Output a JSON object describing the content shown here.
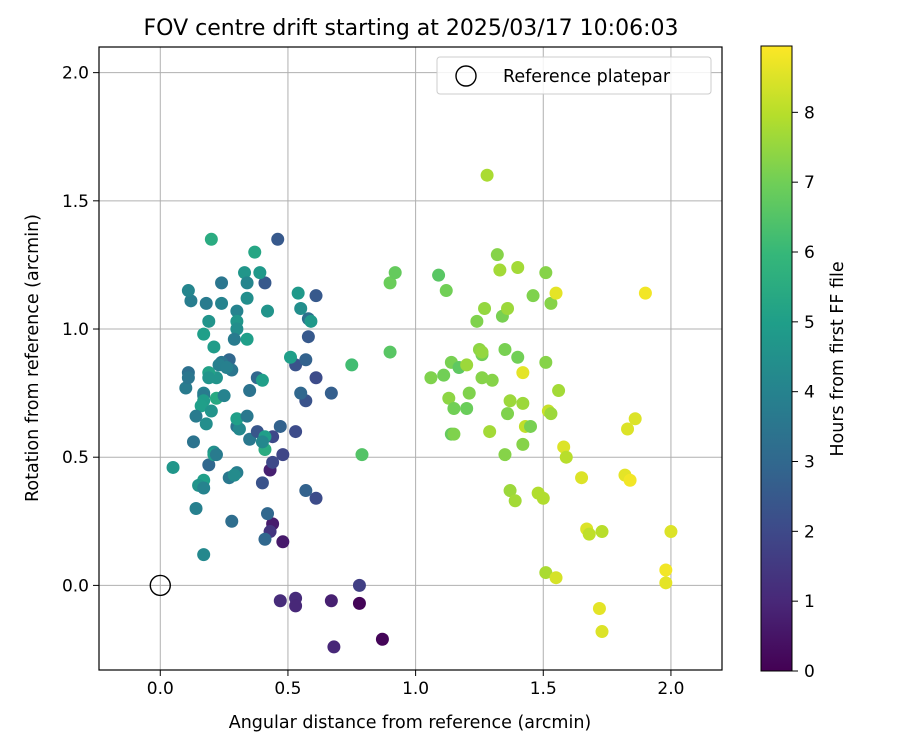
{
  "chart_data": {
    "type": "scatter",
    "title": "FOV centre drift starting at 2025/03/17 10:06:03",
    "xlabel": "Angular distance from reference (arcmin)",
    "ylabel": "Rotation from reference (arcmin)",
    "xlim": [
      -0.24,
      2.2
    ],
    "ylim": [
      -0.33,
      2.1
    ],
    "xticks": [
      0.0,
      0.5,
      1.0,
      1.5,
      2.0
    ],
    "xtick_labels": [
      "0.0",
      "0.5",
      "1.0",
      "1.5",
      "2.0"
    ],
    "yticks": [
      0.0,
      0.5,
      1.0,
      1.5,
      2.0
    ],
    "ytick_labels": [
      "0.0",
      "0.5",
      "1.0",
      "1.5",
      "2.0"
    ],
    "grid": true,
    "legend": {
      "placement": "upper right",
      "entries": [
        {
          "label": "Reference platepar",
          "marker": "open-circle",
          "color": "#000000"
        }
      ]
    },
    "reference_point": {
      "x": 0.0,
      "y": 0.0
    },
    "colorbar": {
      "label": "Hours from first FF file",
      "colormap": "viridis",
      "range": [
        0,
        8.95
      ],
      "ticks": [
        0,
        1,
        2,
        3,
        4,
        5,
        6,
        7,
        8
      ],
      "tick_labels": [
        "0",
        "1",
        "2",
        "3",
        "4",
        "5",
        "6",
        "7",
        "8"
      ]
    },
    "points": [
      [
        0.87,
        -0.21,
        0.1
      ],
      [
        0.78,
        0.0,
        1.7
      ],
      [
        0.78,
        -0.07,
        0.1
      ],
      [
        0.68,
        -0.24,
        1.0
      ],
      [
        0.67,
        -0.06,
        0.8
      ],
      [
        0.53,
        -0.05,
        1.1
      ],
      [
        0.53,
        -0.08,
        1.0
      ],
      [
        0.47,
        -0.06,
        1.1
      ],
      [
        0.48,
        0.17,
        0.6
      ],
      [
        0.44,
        0.24,
        0.7
      ],
      [
        0.43,
        0.21,
        1.4
      ],
      [
        0.43,
        0.45,
        0.8
      ],
      [
        0.48,
        0.51,
        1.9
      ],
      [
        0.44,
        0.48,
        2.0
      ],
      [
        0.41,
        0.18,
        3.0
      ],
      [
        0.42,
        0.28,
        3.0
      ],
      [
        0.4,
        0.4,
        2.3
      ],
      [
        0.44,
        0.58,
        2.0
      ],
      [
        0.47,
        0.62,
        2.8
      ],
      [
        0.53,
        0.6,
        2.1
      ],
      [
        0.57,
        0.37,
        2.8
      ],
      [
        0.61,
        0.34,
        2.1
      ],
      [
        0.67,
        0.75,
        2.7
      ],
      [
        0.61,
        0.81,
        2.1
      ],
      [
        0.53,
        0.86,
        2.3
      ],
      [
        0.57,
        0.72,
        2.3
      ],
      [
        0.57,
        0.88,
        2.8
      ],
      [
        0.55,
        0.75,
        3.0
      ],
      [
        0.58,
        0.97,
        2.5
      ],
      [
        0.58,
        1.04,
        3.3
      ],
      [
        0.61,
        1.13,
        2.5
      ],
      [
        0.54,
        1.14,
        4.8
      ],
      [
        0.55,
        1.08,
        4.4
      ],
      [
        0.59,
        1.03,
        4.8
      ],
      [
        0.51,
        0.89,
        5.0
      ],
      [
        0.46,
        1.35,
        2.5
      ],
      [
        0.41,
        1.18,
        2.5
      ],
      [
        0.39,
        1.22,
        4.8
      ],
      [
        0.37,
        1.3,
        5.3
      ],
      [
        0.42,
        1.07,
        4.6
      ],
      [
        0.33,
        1.22,
        4.7
      ],
      [
        0.34,
        1.18,
        4.1
      ],
      [
        0.34,
        1.12,
        4.4
      ],
      [
        0.3,
        1.07,
        4.0
      ],
      [
        0.3,
        1.03,
        4.7
      ],
      [
        0.3,
        1.0,
        4.4
      ],
      [
        0.29,
        0.96,
        3.7
      ],
      [
        0.34,
        0.96,
        5.0
      ],
      [
        0.27,
        0.88,
        3.0
      ],
      [
        0.24,
        0.87,
        3.5
      ],
      [
        0.23,
        0.86,
        3.9
      ],
      [
        0.28,
        0.84,
        3.5
      ],
      [
        0.26,
        0.85,
        3.9
      ],
      [
        0.22,
        0.81,
        4.6
      ],
      [
        0.19,
        0.83,
        5.1
      ],
      [
        0.19,
        0.81,
        4.6
      ],
      [
        0.21,
        0.93,
        4.9
      ],
      [
        0.17,
        0.98,
        5.0
      ],
      [
        0.19,
        1.03,
        4.6
      ],
      [
        0.18,
        1.1,
        3.7
      ],
      [
        0.24,
        1.1,
        4.0
      ],
      [
        0.24,
        1.18,
        3.5
      ],
      [
        0.12,
        1.11,
        3.8
      ],
      [
        0.11,
        1.15,
        4.1
      ],
      [
        0.2,
        1.35,
        5.5
      ],
      [
        0.11,
        0.83,
        3.3
      ],
      [
        0.1,
        0.77,
        3.7
      ],
      [
        0.11,
        0.81,
        3.5
      ],
      [
        0.17,
        0.75,
        4.0
      ],
      [
        0.17,
        0.74,
        3.7
      ],
      [
        0.17,
        0.72,
        4.9
      ],
      [
        0.16,
        0.7,
        5.0
      ],
      [
        0.22,
        0.73,
        5.4
      ],
      [
        0.25,
        0.74,
        4.0
      ],
      [
        0.2,
        0.68,
        4.6
      ],
      [
        0.14,
        0.66,
        3.7
      ],
      [
        0.18,
        0.63,
        4.4
      ],
      [
        0.13,
        0.56,
        3.4
      ],
      [
        0.19,
        0.47,
        3.0
      ],
      [
        0.21,
        0.52,
        4.4
      ],
      [
        0.21,
        0.51,
        5.0
      ],
      [
        0.22,
        0.51,
        3.7
      ],
      [
        0.17,
        0.41,
        5.0
      ],
      [
        0.15,
        0.39,
        4.6
      ],
      [
        0.17,
        0.38,
        4.0
      ],
      [
        0.05,
        0.46,
        4.7
      ],
      [
        0.14,
        0.3,
        3.9
      ],
      [
        0.17,
        0.12,
        4.2
      ],
      [
        0.28,
        0.25,
        3.2
      ],
      [
        0.27,
        0.42,
        3.6
      ],
      [
        0.3,
        0.44,
        3.8
      ],
      [
        0.29,
        0.43,
        4.3
      ],
      [
        0.3,
        0.62,
        3.4
      ],
      [
        0.31,
        0.61,
        4.2
      ],
      [
        0.3,
        0.65,
        5.0
      ],
      [
        0.34,
        0.66,
        3.6
      ],
      [
        0.35,
        0.76,
        3.4
      ],
      [
        0.38,
        0.81,
        3.0
      ],
      [
        0.4,
        0.8,
        5.0
      ],
      [
        0.35,
        0.57,
        3.6
      ],
      [
        0.38,
        0.6,
        2.4
      ],
      [
        0.41,
        0.58,
        5.0
      ],
      [
        0.41,
        0.53,
        5.5
      ],
      [
        0.4,
        0.56,
        4.2
      ],
      [
        0.75,
        0.86,
        6.2
      ],
      [
        0.79,
        0.51,
        6.5
      ],
      [
        0.9,
        0.91,
        6.6
      ],
      [
        0.9,
        1.18,
        6.9
      ],
      [
        0.92,
        1.22,
        6.8
      ],
      [
        1.09,
        1.21,
        6.6
      ],
      [
        1.12,
        1.15,
        7.0
      ],
      [
        1.06,
        0.81,
        7.2
      ],
      [
        1.11,
        0.82,
        7.0
      ],
      [
        1.14,
        0.87,
        7.1
      ],
      [
        1.17,
        0.85,
        6.7
      ],
      [
        1.13,
        0.73,
        7.4
      ],
      [
        1.15,
        0.69,
        7.0
      ],
      [
        1.14,
        0.59,
        6.8
      ],
      [
        1.15,
        0.59,
        7.2
      ],
      [
        1.2,
        0.69,
        6.9
      ],
      [
        1.21,
        0.75,
        7.2
      ],
      [
        1.2,
        0.86,
        7.6
      ],
      [
        1.24,
        1.03,
        7.2
      ],
      [
        1.27,
        1.08,
        7.5
      ],
      [
        1.25,
        0.92,
        7.4
      ],
      [
        1.26,
        0.9,
        7.0
      ],
      [
        1.26,
        0.91,
        7.5
      ],
      [
        1.26,
        0.81,
        7.3
      ],
      [
        1.3,
        0.8,
        7.3
      ],
      [
        1.29,
        0.6,
        7.7
      ],
      [
        1.28,
        1.6,
        7.8
      ],
      [
        1.32,
        1.29,
        7.3
      ],
      [
        1.33,
        1.23,
        7.7
      ],
      [
        1.34,
        1.05,
        7.1
      ],
      [
        1.36,
        1.08,
        7.6
      ],
      [
        1.35,
        0.92,
        7.1
      ],
      [
        1.36,
        0.67,
        7.2
      ],
      [
        1.37,
        0.72,
        7.6
      ],
      [
        1.35,
        0.51,
        7.3
      ],
      [
        1.37,
        0.37,
        7.6
      ],
      [
        1.39,
        0.33,
        7.7
      ],
      [
        1.4,
        0.89,
        7.0
      ],
      [
        1.4,
        1.24,
        7.7
      ],
      [
        1.42,
        0.83,
        8.6
      ],
      [
        1.42,
        0.71,
        7.6
      ],
      [
        1.43,
        0.62,
        8.1
      ],
      [
        1.42,
        0.55,
        7.3
      ],
      [
        1.45,
        0.62,
        7.1
      ],
      [
        1.46,
        1.13,
        7.2
      ],
      [
        1.48,
        0.36,
        7.9
      ],
      [
        1.51,
        1.22,
        7.3
      ],
      [
        1.53,
        1.1,
        7.3
      ],
      [
        1.55,
        1.14,
        8.6
      ],
      [
        1.51,
        0.87,
        7.3
      ],
      [
        1.52,
        0.68,
        8.2
      ],
      [
        1.53,
        0.67,
        7.6
      ],
      [
        1.56,
        0.76,
        7.7
      ],
      [
        1.5,
        0.34,
        7.9
      ],
      [
        1.51,
        0.05,
        7.8
      ],
      [
        1.55,
        0.03,
        8.4
      ],
      [
        1.58,
        0.54,
        8.5
      ],
      [
        1.59,
        0.5,
        8.0
      ],
      [
        1.65,
        0.42,
        8.5
      ],
      [
        1.67,
        0.22,
        8.5
      ],
      [
        1.68,
        0.2,
        8.1
      ],
      [
        1.73,
        0.21,
        8.0
      ],
      [
        1.72,
        -0.09,
        8.6
      ],
      [
        1.73,
        -0.18,
        8.5
      ],
      [
        1.82,
        0.43,
        8.6
      ],
      [
        1.83,
        0.61,
        8.5
      ],
      [
        1.84,
        0.41,
        8.8
      ],
      [
        1.86,
        0.65,
        8.5
      ],
      [
        1.9,
        1.14,
        8.8
      ],
      [
        1.98,
        0.06,
        8.8
      ],
      [
        1.98,
        0.01,
        8.6
      ],
      [
        2.0,
        0.21,
        8.5
      ]
    ]
  }
}
